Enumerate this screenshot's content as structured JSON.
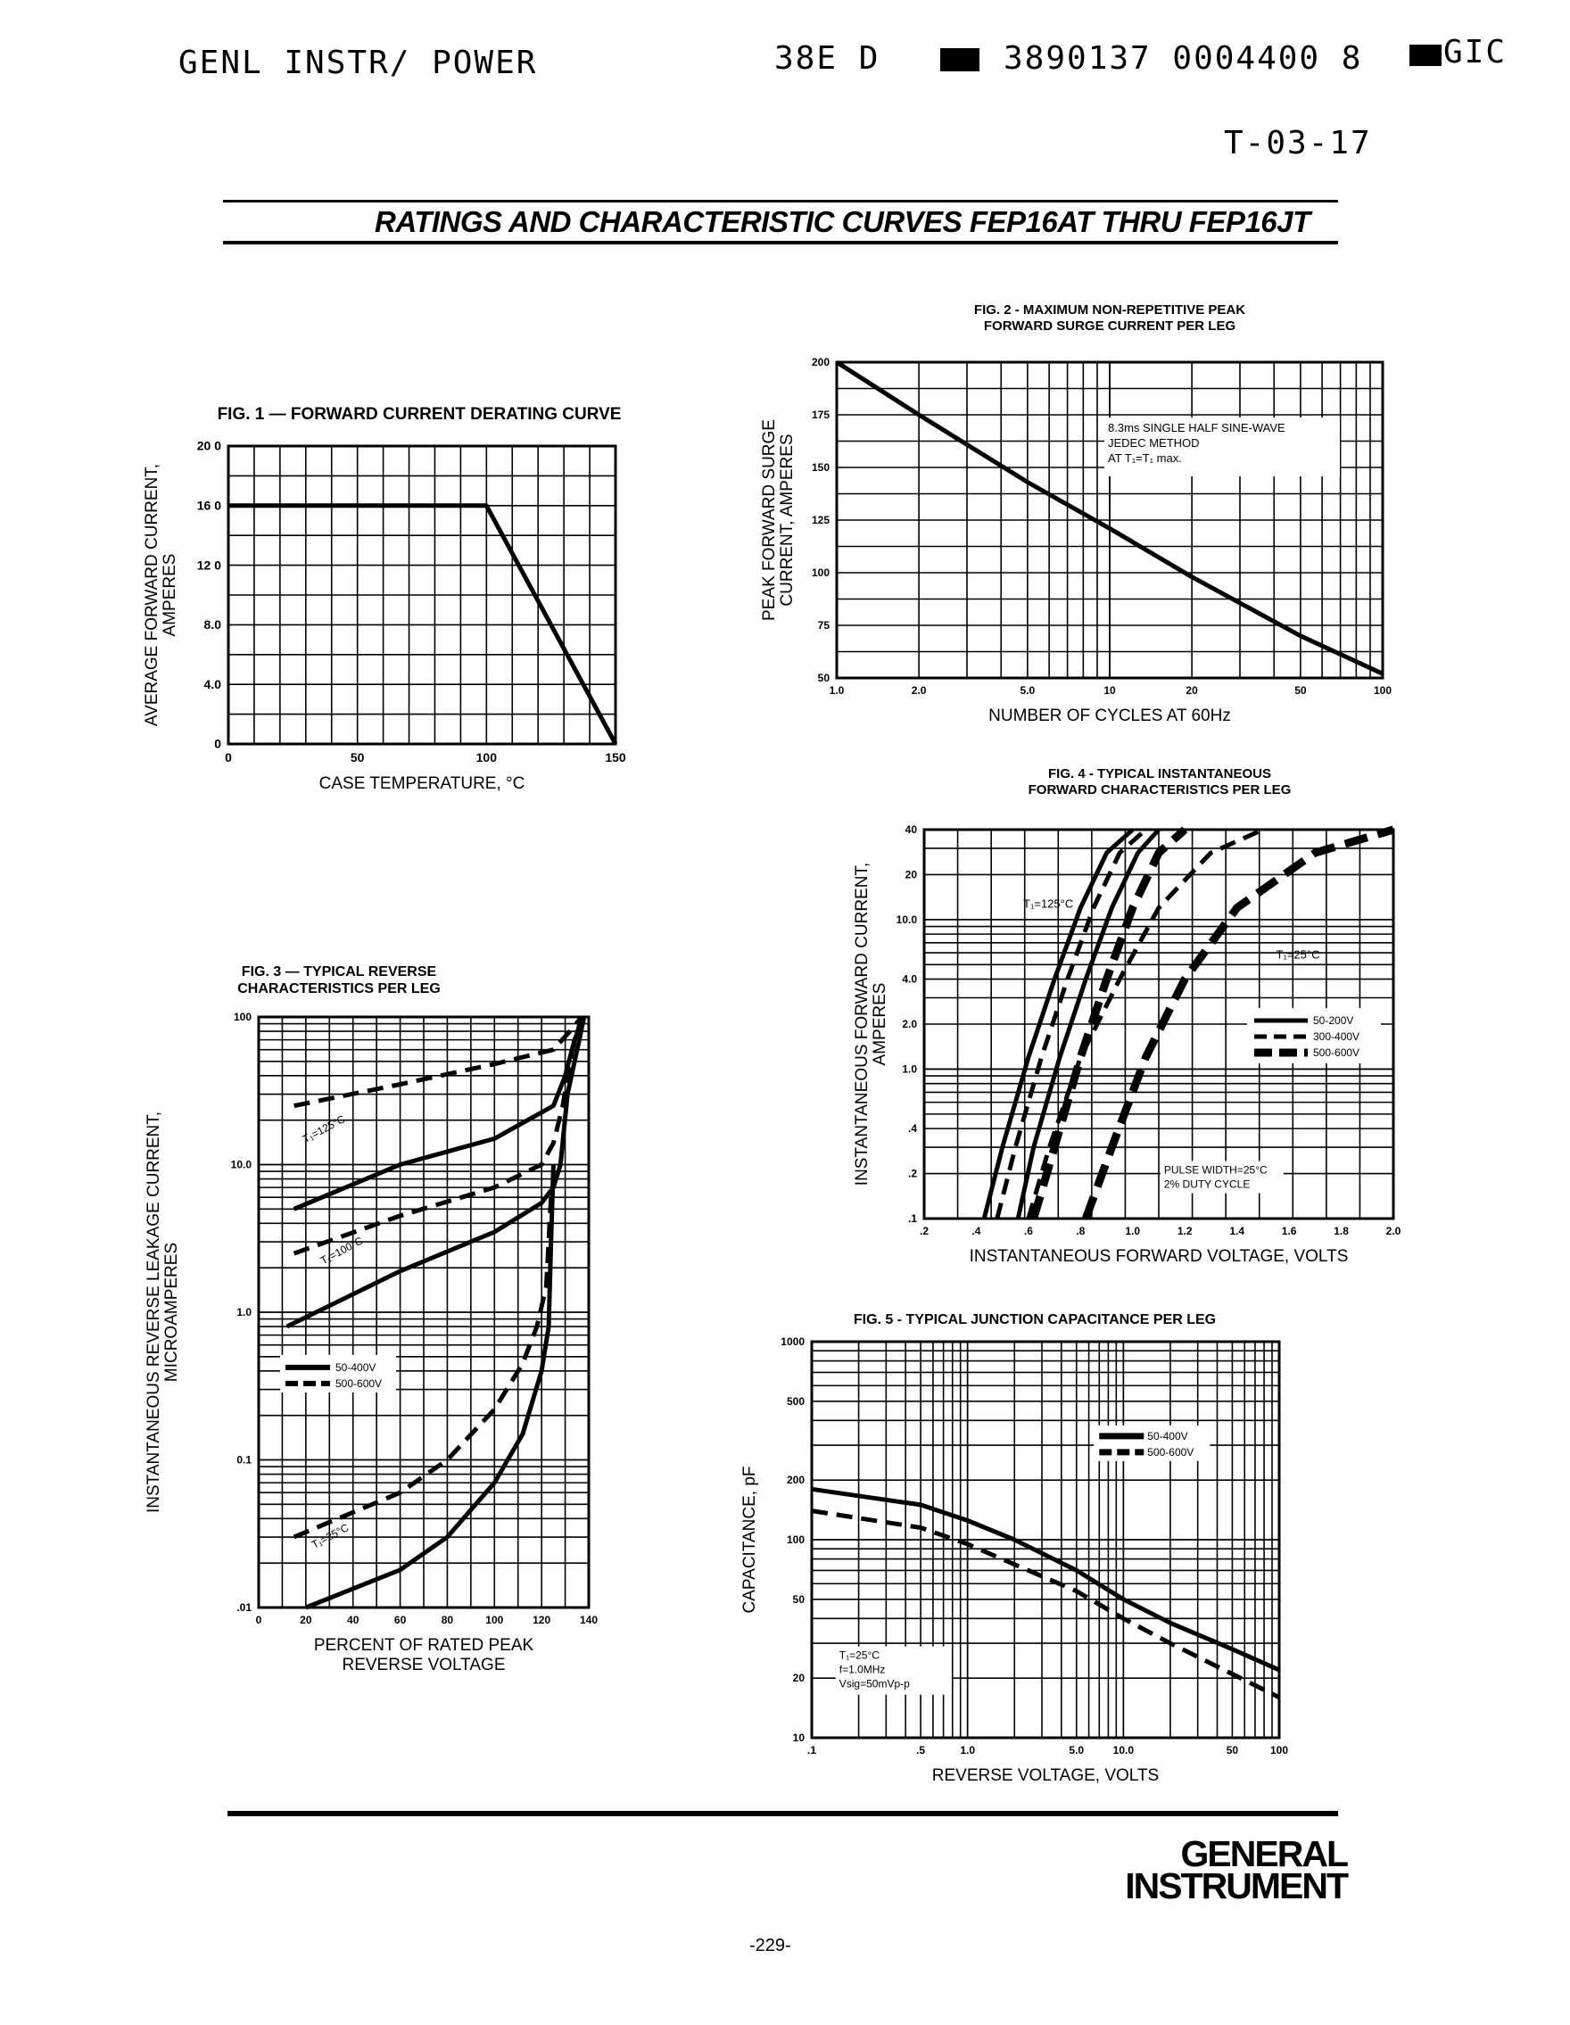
{
  "header": {
    "left": "GENL INSTR/ POWER",
    "middle": "38E D",
    "right": "3890137 0004400 8",
    "right_end": "GIC",
    "doc_code": "T-03-17"
  },
  "title": "RATINGS AND CHARACTERISTIC CURVES FEP16AT THRU FEP16JT",
  "footer": {
    "logo_line1": "GENERAL",
    "logo_line2": "INSTRUMENT",
    "page": "-229-"
  },
  "chart_data": [
    {
      "id": "fig1",
      "type": "line",
      "title": "FIG. 1 — FORWARD CURRENT DERATING CURVE",
      "xlabel": "CASE TEMPERATURE, °C",
      "ylabel": [
        "AVERAGE FORWARD CURRENT,",
        "AMPERES"
      ],
      "xlim": [
        0,
        150
      ],
      "ylim": [
        0,
        20
      ],
      "xticks": [
        0,
        50,
        100,
        150
      ],
      "xtick_labels": [
        "0",
        "50",
        "100",
        "150"
      ],
      "yticks": [
        0,
        4,
        8,
        12,
        16,
        20
      ],
      "ytick_labels": [
        "0",
        "4.0",
        "8.0",
        "12 0",
        "16 0",
        "20 0"
      ],
      "grid": true,
      "series": [
        {
          "x": [
            0,
            100,
            150
          ],
          "y": [
            16,
            16,
            0
          ]
        }
      ]
    },
    {
      "id": "fig2",
      "type": "line",
      "title": [
        "FIG. 2 - MAXIMUM NON-REPETITIVE PEAK",
        "FORWARD SURGE CURRENT PER LEG"
      ],
      "xlabel": "NUMBER OF CYCLES AT 60Hz",
      "ylabel": [
        "PEAK FORWARD SURGE",
        "CURRENT, AMPERES"
      ],
      "xscale": "log",
      "xlim": [
        1,
        100
      ],
      "ylim": [
        50,
        200
      ],
      "xtick_labels": [
        "1.0",
        "2.0",
        "5.0",
        "10",
        "20",
        "50",
        "100"
      ],
      "xticks": [
        1,
        2,
        5,
        10,
        20,
        50,
        100
      ],
      "yticks": [
        50,
        75,
        100,
        125,
        150,
        175,
        200
      ],
      "ytick_labels": [
        "50",
        "75",
        "100",
        "125",
        "150",
        "175",
        "200"
      ],
      "annotation": [
        "8.3ms SINGLE HALF SINE-WAVE",
        "JEDEC METHOD",
        "AT T₁=T₁ max."
      ],
      "grid": true,
      "series": [
        {
          "x": [
            1,
            2,
            5,
            10,
            20,
            50,
            100
          ],
          "y": [
            200,
            175,
            143,
            121,
            98,
            70,
            52
          ]
        }
      ]
    },
    {
      "id": "fig3",
      "type": "line",
      "title": [
        "FIG. 3 — TYPICAL REVERSE",
        "CHARACTERISTICS PER LEG"
      ],
      "xlabel": [
        "PERCENT OF RATED PEAK",
        "REVERSE VOLTAGE"
      ],
      "ylabel": [
        "INSTANTANEOUS REVERSE LEAKAGE CURRENT,",
        "MICROAMPERES"
      ],
      "yscale": "log",
      "xlim": [
        0,
        140
      ],
      "ylim": [
        0.01,
        100
      ],
      "xticks": [
        0,
        20,
        40,
        60,
        80,
        100,
        120,
        140
      ],
      "xtick_labels": [
        "0",
        "20",
        "40",
        "60",
        "80",
        "100",
        "120",
        "140"
      ],
      "yticks": [
        0.01,
        0.1,
        1,
        10,
        100
      ],
      "ytick_labels": [
        ".01",
        "0.1",
        "1.0",
        "10.0",
        "100"
      ],
      "legend": [
        "50-400V",
        "500-600V"
      ],
      "annotations": [
        "T₁=125°C",
        "T₁=100°C",
        "T₁=25°C"
      ],
      "grid": true,
      "series": [
        {
          "name": "50-400V",
          "style": "solid",
          "x": [
            15,
            60,
            100,
            125,
            130,
            134,
            138
          ],
          "y": [
            5,
            10,
            15,
            25,
            40,
            70,
            100
          ]
        },
        {
          "name": "500-600V",
          "style": "dashed",
          "x": [
            15,
            60,
            100,
            125,
            132,
            137
          ],
          "y": [
            25,
            35,
            48,
            60,
            80,
            100
          ]
        },
        {
          "name": "50-400V",
          "style": "solid",
          "x": [
            12,
            60,
            100,
            120,
            125,
            128,
            131,
            136,
            138
          ],
          "y": [
            0.8,
            1.9,
            3.5,
            5.5,
            7,
            10,
            30,
            70,
            100
          ]
        },
        {
          "name": "500-600V",
          "style": "dashed",
          "x": [
            15,
            60,
            100,
            120,
            125,
            129,
            133,
            137
          ],
          "y": [
            2.5,
            4.5,
            7,
            10,
            14,
            25,
            60,
            100
          ]
        },
        {
          "name": "50-400V",
          "style": "solid",
          "x": [
            20,
            60,
            80,
            100,
            112,
            120,
            123,
            124,
            125
          ],
          "y": [
            0.01,
            0.018,
            0.03,
            0.07,
            0.15,
            0.4,
            0.8,
            3,
            10
          ]
        },
        {
          "name": "500-600V",
          "style": "dashed",
          "x": [
            15,
            60,
            80,
            100,
            112,
            118,
            122,
            124
          ],
          "y": [
            0.03,
            0.06,
            0.1,
            0.22,
            0.45,
            0.8,
            1.5,
            6
          ]
        }
      ]
    },
    {
      "id": "fig4",
      "type": "line",
      "title": [
        "FIG. 4 - TYPICAL INSTANTANEOUS",
        "FORWARD CHARACTERISTICS PER LEG"
      ],
      "xlabel": "INSTANTANEOUS FORWARD VOLTAGE, VOLTS",
      "ylabel": [
        "INSTANTANEOUS FORWARD CURRENT,",
        "AMPERES"
      ],
      "yscale": "log",
      "xlim": [
        0.2,
        2.0
      ],
      "ylim": [
        0.1,
        40
      ],
      "xticks": [
        0.2,
        0.4,
        0.6,
        0.8,
        1.0,
        1.2,
        1.4,
        1.6,
        1.8,
        2.0
      ],
      "xtick_labels": [
        ".2",
        ".4",
        ".6",
        ".8",
        "1.0",
        "1.2",
        "1.4",
        "1.6",
        "1.8",
        "2.0"
      ],
      "yticks": [
        0.1,
        0.2,
        0.4,
        1,
        2,
        4,
        10,
        20,
        40
      ],
      "ytick_labels": [
        ".1",
        ".2",
        ".4",
        "1.0",
        "2.0",
        "4.0",
        "10.0",
        "20",
        "40"
      ],
      "legend": [
        "50-200V",
        "300-400V",
        "500-600V"
      ],
      "annotations": [
        "T₁=125°C",
        "T₁=25°C",
        "PULSE WIDTH=25°C",
        "2% DUTY CYCLE"
      ],
      "grid": true,
      "series": [
        {
          "name": "50-200V",
          "style": "solid",
          "x": [
            0.43,
            0.5,
            0.6,
            0.7,
            0.8,
            0.9,
            1.0
          ],
          "y": [
            0.1,
            0.3,
            1.2,
            4,
            12,
            28,
            40
          ]
        },
        {
          "name": "300-400V",
          "style": "dashed",
          "x": [
            0.48,
            0.55,
            0.65,
            0.75,
            0.85,
            0.95,
            1.05
          ],
          "y": [
            0.1,
            0.3,
            1.2,
            4,
            12,
            28,
            40
          ]
        },
        {
          "name": "500-600V",
          "style": "heavy-dashed",
          "x": [
            0.62,
            0.7,
            0.8,
            0.9,
            1.0,
            1.1,
            1.2
          ],
          "y": [
            0.1,
            0.3,
            1.2,
            4,
            12,
            28,
            40
          ]
        },
        {
          "name": "50-200V",
          "style": "solid",
          "x": [
            0.56,
            0.62,
            0.72,
            0.82,
            0.92,
            1.02,
            1.1
          ],
          "y": [
            0.1,
            0.3,
            1.2,
            4,
            12,
            28,
            40
          ]
        },
        {
          "name": "300-400V",
          "style": "dashed",
          "x": [
            0.6,
            0.68,
            0.8,
            0.95,
            1.1,
            1.3,
            1.5
          ],
          "y": [
            0.1,
            0.3,
            1.2,
            4,
            12,
            28,
            40
          ]
        },
        {
          "name": "500-600V",
          "style": "heavy-dashed",
          "x": [
            0.82,
            0.92,
            1.05,
            1.2,
            1.4,
            1.7,
            2.0
          ],
          "y": [
            0.1,
            0.3,
            1.2,
            4,
            12,
            28,
            40
          ]
        }
      ]
    },
    {
      "id": "fig5",
      "type": "line",
      "title": "FIG. 5 - TYPICAL JUNCTION CAPACITANCE PER LEG",
      "xlabel": "REVERSE VOLTAGE, VOLTS",
      "ylabel": "CAPACITANCE, pF",
      "xscale": "log",
      "yscale": "log",
      "xlim": [
        0.1,
        100
      ],
      "ylim": [
        10,
        1000
      ],
      "xticks": [
        0.1,
        0.5,
        1,
        5,
        10,
        50,
        100
      ],
      "xtick_labels": [
        ".1",
        ".5",
        "1.0",
        "5.0",
        "10.0",
        "50",
        "100"
      ],
      "yticks": [
        10,
        20,
        50,
        100,
        200,
        500,
        1000
      ],
      "ytick_labels": [
        "10",
        "20",
        "50",
        "100",
        "200",
        "500",
        "1000"
      ],
      "legend": [
        "50-400V",
        "500-600V"
      ],
      "annotation": [
        "T₁=25°C",
        "f=1.0MHz",
        "Vsig=50mVp-p"
      ],
      "grid": true,
      "series": [
        {
          "name": "50-400V",
          "style": "solid",
          "x": [
            0.1,
            0.5,
            1,
            2,
            5,
            10,
            20,
            50,
            100
          ],
          "y": [
            180,
            150,
            125,
            100,
            70,
            50,
            38,
            28,
            22
          ]
        },
        {
          "name": "500-600V",
          "style": "dashed",
          "x": [
            0.1,
            0.5,
            1,
            2,
            5,
            10,
            20,
            50,
            100
          ],
          "y": [
            140,
            115,
            95,
            75,
            55,
            40,
            30,
            21,
            16
          ]
        }
      ]
    }
  ]
}
